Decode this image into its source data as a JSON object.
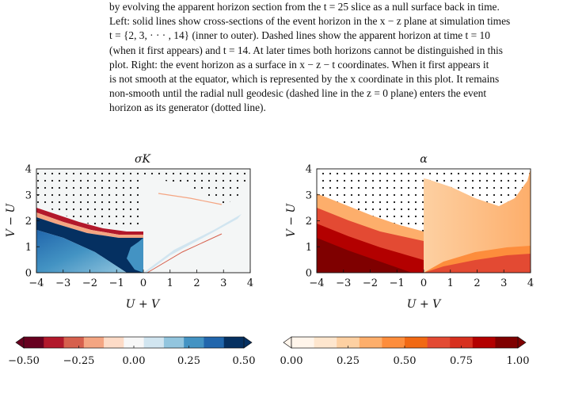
{
  "caption": {
    "lines": [
      "by evolving the apparent horizon section from the t = 25 slice as a null surface back in time.",
      "Left: solid lines show cross-sections of the event horizon in the x − z plane at simulation times",
      "t = {2, 3, · · · , 14} (inner to outer). Dashed lines show the apparent horizon at time t = 10",
      "(when it first appears) and t = 14. At later times both horizons cannot be distinguished in this",
      "plot. Right: the event horizon as a surface in x − z − t coordinates. When it first appears it",
      "is not smooth at the equator, which is represented by the x coordinate in this plot. It remains",
      "non-smooth until the radial null geodesic (dashed line in the z = 0 plane) enters the event",
      "horizon as its generator (dotted line)."
    ]
  },
  "chart_data": [
    {
      "type": "heatmap",
      "title": "σK",
      "xlabel": "U + V",
      "ylabel": "V − U",
      "xlim": [
        -4,
        4
      ],
      "ylim": [
        0,
        4
      ],
      "xticks": [
        "−4",
        "−3",
        "−2",
        "−1",
        "0",
        "1",
        "2",
        "3",
        "4"
      ],
      "yticks": [
        "0",
        "1",
        "2",
        "3",
        "4"
      ],
      "colormap": "RdBu",
      "colorbar": {
        "ticks": [
          "−0.50",
          "−0.25",
          "0.00",
          "0.25",
          "0.50"
        ],
        "range": [
          -0.5,
          0.5
        ],
        "colors": [
          "#67001f",
          "#b2182b",
          "#d6604d",
          "#f4a582",
          "#fddbc7",
          "#f7f7f7",
          "#d1e5f0",
          "#92c5de",
          "#4393c3",
          "#2166ac",
          "#053061"
        ]
      }
    },
    {
      "type": "heatmap",
      "title": "α",
      "xlabel": "U + V",
      "ylabel": "V − U",
      "xlim": [
        -4,
        4
      ],
      "ylim": [
        0,
        4
      ],
      "xticks": [
        "−4",
        "−3",
        "−2",
        "−1",
        "0",
        "1",
        "2",
        "3",
        "4"
      ],
      "yticks": [
        "0",
        "1",
        "2",
        "3",
        "4"
      ],
      "colormap": "OrRd",
      "colorbar": {
        "ticks": [
          "0.00",
          "0.25",
          "0.50",
          "0.75",
          "1.00"
        ],
        "range": [
          0,
          1
        ],
        "colors": [
          "#fff5eb",
          "#fee6ce",
          "#fdd0a2",
          "#fdae6b",
          "#fd8d3c",
          "#f16913",
          "#e34a33",
          "#d7301f",
          "#b30000",
          "#7f0000"
        ]
      }
    }
  ]
}
